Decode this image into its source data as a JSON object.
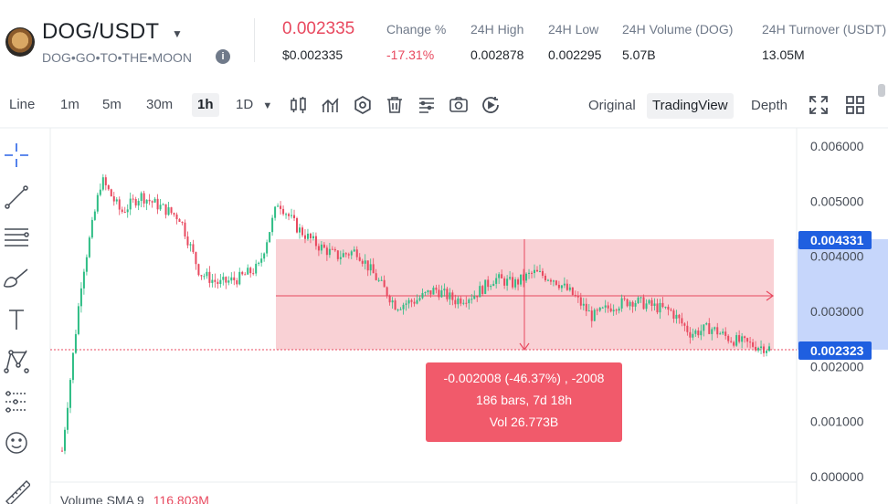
{
  "header": {
    "pair": "DOG/USDT",
    "slogan": "DOG•GO•TO•THE•MOON",
    "info_icon": "info-icon",
    "last_price": "0.002335",
    "last_price_usd": "$0.002335",
    "stats": [
      {
        "label": "Change %",
        "value": "-17.31%",
        "tone": "down"
      },
      {
        "label": "24H High",
        "value": "0.002878",
        "tone": "neutral"
      },
      {
        "label": "24H Low",
        "value": "0.002295",
        "tone": "neutral"
      },
      {
        "label": "24H Volume (DOG)",
        "value": "5.07B",
        "tone": "neutral"
      },
      {
        "label": "24H Turnover (USDT)",
        "value": "13.05M",
        "tone": "neutral"
      }
    ]
  },
  "toolbar": {
    "line_label": "Line",
    "intervals": [
      "1m",
      "5m",
      "30m",
      "1h"
    ],
    "active_interval": "1h",
    "more_interval": "1D",
    "tool_icons": [
      "candle-type-icon",
      "indicators-icon",
      "settings-icon",
      "trash-icon",
      "layout-icon",
      "screenshot-icon",
      "replay-icon"
    ],
    "views": [
      "Original",
      "TradingView",
      "Depth"
    ],
    "active_view": "TradingView",
    "right_icons": [
      "fullscreen-icon",
      "grid-layout-icon"
    ]
  },
  "sidebar": {
    "tools": [
      "crosshair-icon",
      "trendline-icon",
      "fib-lines-icon",
      "brush-icon",
      "text-tool-icon",
      "pattern-icon",
      "forecast-icon",
      "emoji-icon",
      "ruler-icon"
    ]
  },
  "chart_data": {
    "type": "candlestick",
    "price_axis": {
      "ticks": [
        "0.006000",
        "0.005000",
        "0.004000",
        "0.003000",
        "0.002000",
        "0.001000",
        "0.000000"
      ],
      "range": [
        0,
        0.006
      ]
    },
    "current_price_badge": "0.002323",
    "measure_top_badge": "0.004331",
    "measure": {
      "line1": "-0.002008 (-46.37%) , -2008",
      "line2": "186 bars, 7d 18h",
      "line3": "Vol 26.773B"
    },
    "approx_close_path": [
      0.00047,
      0.0036,
      0.0054,
      0.0048,
      0.0051,
      0.0049,
      0.0047,
      0.0037,
      0.0035,
      0.0036,
      0.0038,
      0.005,
      0.0045,
      0.0042,
      0.004,
      0.0041,
      0.0036,
      0.0031,
      0.0032,
      0.0034,
      0.0032,
      0.0033,
      0.0036,
      0.0035,
      0.0037,
      0.0036,
      0.0033,
      0.0029,
      0.0031,
      0.0032,
      0.0031,
      0.003,
      0.0026,
      0.0027,
      0.0025,
      0.0024,
      0.00233
    ],
    "colors": {
      "up": "#2ebd85",
      "down": "#e8495f",
      "range_fill": "#f8c9ce",
      "badge": "#1f5fe0"
    }
  },
  "volume_legend": {
    "label": "Volume SMA 9",
    "value": "116.803M"
  }
}
